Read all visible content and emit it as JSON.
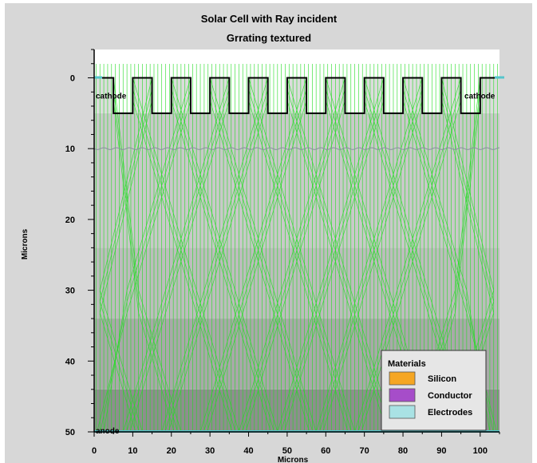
{
  "chart_data": {
    "type": "other",
    "title": "Solar Cell with Ray incident",
    "subtitle": "Grrating textured",
    "xlabel": "Microns",
    "ylabel": "Microns",
    "xlim": [
      0,
      105
    ],
    "ylim": [
      50,
      -4
    ],
    "x_ticks": [
      0,
      10,
      20,
      30,
      40,
      50,
      60,
      70,
      80,
      90,
      100
    ],
    "y_ticks": [
      0,
      10,
      20,
      30,
      40,
      50
    ],
    "grating": {
      "period_um": 10,
      "groove_width_um": 5,
      "groove_depth_um": 5,
      "top_y_um": 0,
      "bottom_y_um": 5,
      "grooves_x_um": [
        5,
        15,
        25,
        35,
        45,
        55,
        65,
        75,
        85,
        95
      ]
    },
    "junction_y_um": 10,
    "region_labels": [
      {
        "text": "cathode",
        "x_um": 0,
        "y_um": 2.5
      },
      {
        "text": "cathode",
        "x_um": 95.5,
        "y_um": 2.5
      },
      {
        "text": "anode",
        "x_um": 0,
        "y_um": 49.8
      }
    ],
    "ray_color": "#22dd22",
    "ray_spacing_um": 1,
    "electrode_color": "#55c5cc",
    "depth_shading": [
      {
        "from_um": 5,
        "to_um": 24,
        "gray": "#c9c9c9"
      },
      {
        "from_um": 24,
        "to_um": 34,
        "gray": "#bdbdbd"
      },
      {
        "from_um": 34,
        "to_um": 44,
        "gray": "#a9a9a9"
      },
      {
        "from_um": 44,
        "to_um": 50,
        "gray": "#8e8e8e"
      }
    ],
    "legend": {
      "title": "Materials",
      "position": "bottom-right",
      "items": [
        {
          "label": "Silicon",
          "color": "#f5a623"
        },
        {
          "label": "Conductor",
          "color": "#a64dc9"
        },
        {
          "label": "Electrodes",
          "color": "#a9e2e4"
        }
      ]
    }
  }
}
